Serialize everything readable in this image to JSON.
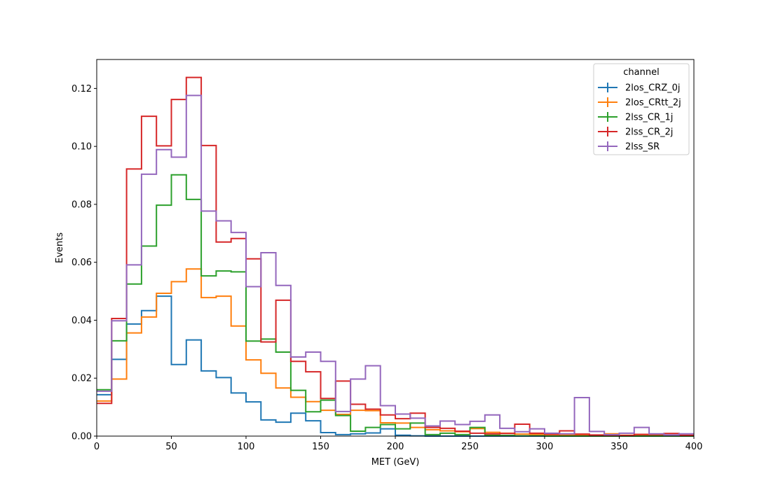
{
  "chart_data": {
    "type": "step-histogram",
    "xlabel": "MET (GeV)",
    "ylabel": "Events",
    "xlim": [
      0,
      400
    ],
    "ylim": [
      0,
      0.13
    ],
    "xticks": [
      "0",
      "50",
      "100",
      "150",
      "200",
      "250",
      "300",
      "350",
      "400"
    ],
    "yticks": [
      "0.00",
      "0.02",
      "0.04",
      "0.06",
      "0.08",
      "0.10",
      "0.12"
    ],
    "bin_edges": [
      0,
      10,
      20,
      30,
      40,
      50,
      60,
      70,
      80,
      90,
      100,
      110,
      120,
      130,
      140,
      150,
      160,
      170,
      180,
      190,
      200,
      210,
      220,
      230,
      240,
      250,
      260,
      270,
      280,
      290,
      300,
      310,
      320,
      330,
      340,
      350,
      360,
      370,
      380,
      390,
      400
    ],
    "legend": {
      "title": "channel",
      "position": "top-right"
    },
    "grid": false,
    "series": [
      {
        "name": "2los_CRZ_0j",
        "color": "#1f77b4",
        "values": [
          0.0143,
          0.0265,
          0.0387,
          0.0433,
          0.0483,
          0.0247,
          0.0332,
          0.0225,
          0.0202,
          0.0149,
          0.0118,
          0.0056,
          0.0048,
          0.0079,
          0.0053,
          0.0012,
          0.0005,
          0.0008,
          0.0011,
          0.0025,
          0.0003,
          0.0001,
          0,
          0,
          0,
          0,
          0,
          0,
          0,
          0,
          0,
          0,
          0,
          0,
          0,
          0,
          0,
          0,
          0,
          0
        ]
      },
      {
        "name": "2los_CRtt_2j",
        "color": "#ff7f0e",
        "values": [
          0.0121,
          0.0197,
          0.0356,
          0.0411,
          0.0493,
          0.0533,
          0.0577,
          0.0478,
          0.0483,
          0.038,
          0.0263,
          0.0217,
          0.0166,
          0.0134,
          0.0119,
          0.0089,
          0.0075,
          0.0089,
          0.0088,
          0.0046,
          0.0045,
          0.003,
          0.0022,
          0.0018,
          0.0015,
          0.0026,
          0.0013,
          0.001,
          0.0007,
          0.0006,
          0.0005,
          0.0004,
          0.0004,
          0.0003,
          0.0008,
          0.0003,
          0.0003,
          0.0002,
          0.0002,
          0.0001
        ]
      },
      {
        "name": "2lss_CR_1j",
        "color": "#2ca02c",
        "values": [
          0.016,
          0.0329,
          0.0525,
          0.0656,
          0.0797,
          0.0902,
          0.0817,
          0.0553,
          0.057,
          0.0567,
          0.0328,
          0.0335,
          0.029,
          0.0158,
          0.0084,
          0.0124,
          0.0071,
          0.0017,
          0.003,
          0.004,
          0.0025,
          0.0045,
          0.0005,
          0.001,
          0.0005,
          0.003,
          0.0003,
          0.0002,
          0.0001,
          0.0001,
          0,
          0,
          0,
          0,
          0,
          0,
          0,
          0,
          0,
          0
        ]
      },
      {
        "name": "2lss_CR_2j",
        "color": "#d62728",
        "values": [
          0.0113,
          0.0406,
          0.0922,
          0.1104,
          0.1002,
          0.1162,
          0.1238,
          0.1003,
          0.067,
          0.0682,
          0.0612,
          0.0325,
          0.0469,
          0.0258,
          0.0222,
          0.013,
          0.019,
          0.011,
          0.0093,
          0.0073,
          0.006,
          0.0079,
          0.003,
          0.0027,
          0.0017,
          0.001,
          0.0008,
          0.0009,
          0.0041,
          0.001,
          0.0007,
          0.0018,
          0.0007,
          0.0004,
          0.0002,
          0.0002,
          0.0006,
          0.0006,
          0.0009,
          0.0003
        ]
      },
      {
        "name": "2lss_SR",
        "color": "#9467bd",
        "values": [
          0.0155,
          0.0398,
          0.0591,
          0.0904,
          0.0989,
          0.0963,
          0.1176,
          0.0777,
          0.0743,
          0.0703,
          0.0516,
          0.0633,
          0.052,
          0.0273,
          0.029,
          0.0258,
          0.0085,
          0.0197,
          0.0243,
          0.0105,
          0.0076,
          0.0062,
          0.0035,
          0.0052,
          0.004,
          0.0051,
          0.0073,
          0.0027,
          0.0015,
          0.0025,
          0.001,
          0.0008,
          0.0133,
          0.0016,
          0.0005,
          0.001,
          0.003,
          0.0008,
          0.0004,
          0.0008
        ]
      }
    ]
  }
}
